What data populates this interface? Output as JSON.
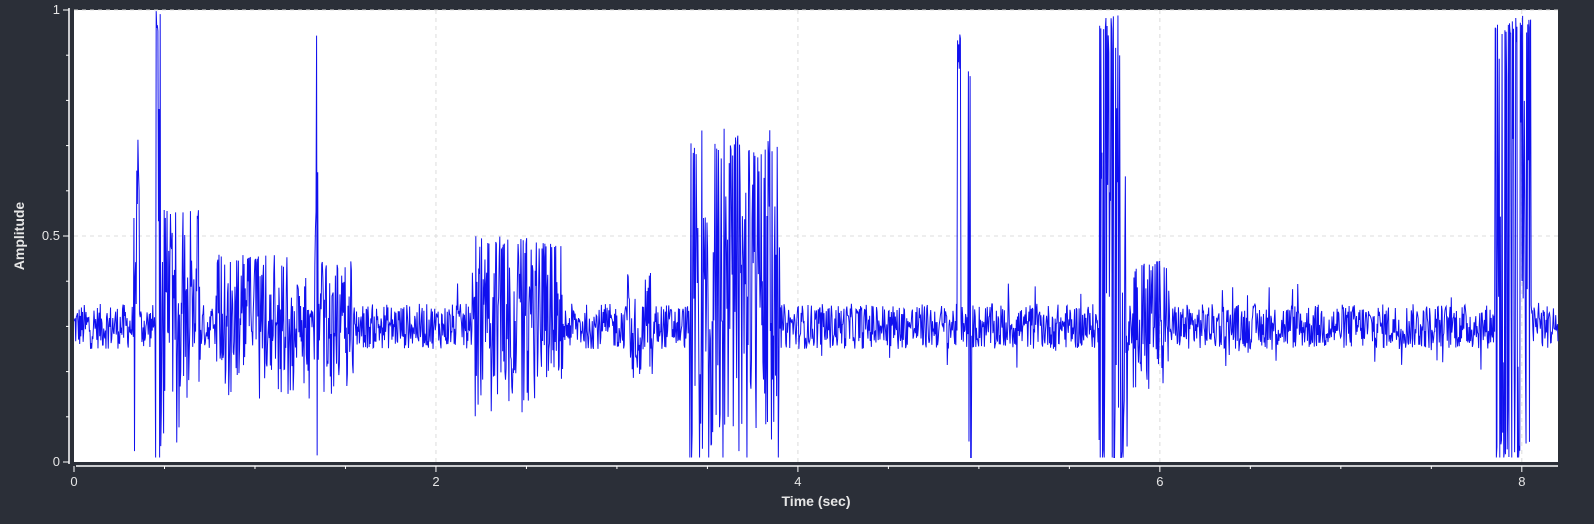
{
  "chart_data": {
    "type": "line",
    "xlabel": "Time (sec)",
    "ylabel": "Amplitude",
    "xlim": [
      0,
      8.2
    ],
    "ylim": [
      0,
      1
    ],
    "x_ticks": [
      0,
      2,
      4,
      6,
      8
    ],
    "y_ticks": [
      0,
      0.5,
      1
    ],
    "x_tick_labels": [
      "0",
      "2",
      "4",
      "6",
      "8"
    ],
    "y_tick_labels": [
      "0",
      "0.5",
      "1"
    ],
    "grid": true,
    "colors": {
      "line": "#1010ee",
      "plot_bg": "#ffffff",
      "figure_bg": "#2b2f38",
      "text": "#e6e6e6"
    },
    "series": [
      {
        "duration": 8.2,
        "baseline": 0.3,
        "noise_amplitude": 0.05,
        "bursts": [
          {
            "start": 0.33,
            "end": 0.36,
            "peak": 0.72
          },
          {
            "start": 0.45,
            "end": 0.48,
            "peak": 1.0
          },
          {
            "start": 0.48,
            "end": 0.7,
            "peak": 0.56
          },
          {
            "start": 0.78,
            "end": 1.3,
            "peak": 0.46
          },
          {
            "start": 1.33,
            "end": 1.35,
            "peak": 0.95
          },
          {
            "start": 1.35,
            "end": 1.55,
            "peak": 0.45
          },
          {
            "start": 2.2,
            "end": 2.7,
            "peak": 0.5
          },
          {
            "start": 3.05,
            "end": 3.2,
            "peak": 0.42
          },
          {
            "start": 3.4,
            "end": 3.9,
            "peak": 0.74
          },
          {
            "start": 4.88,
            "end": 4.9,
            "peak": 0.96
          },
          {
            "start": 4.94,
            "end": 4.96,
            "peak": 0.96
          },
          {
            "start": 5.66,
            "end": 5.82,
            "peak": 0.99
          },
          {
            "start": 5.85,
            "end": 6.05,
            "peak": 0.45
          },
          {
            "start": 7.85,
            "end": 8.05,
            "peak": 0.99
          }
        ]
      }
    ]
  }
}
